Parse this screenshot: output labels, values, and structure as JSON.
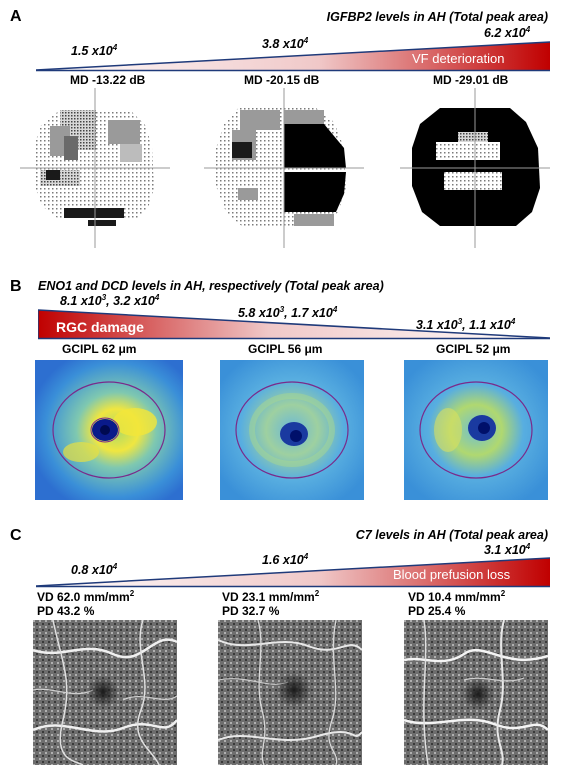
{
  "panelA": {
    "letter": "A",
    "title": "IGFBP2 levels in AH (Total peak area)",
    "levels": [
      {
        "mantissa": "1.5",
        "base": "x10",
        "exp": "4"
      },
      {
        "mantissa": "3.8",
        "base": "x10",
        "exp": "4"
      },
      {
        "mantissa": "6.2",
        "base": "x10",
        "exp": "4"
      }
    ],
    "banner": "VF deterioration",
    "md": [
      "MD -13.22 dB",
      "MD -20.15 dB",
      "MD -29.01 dB"
    ]
  },
  "panelB": {
    "letter": "B",
    "title": "ENO1 and DCD levels in AH, respectively (Total peak area)",
    "levels": [
      {
        "a": "8.1 x10",
        "aexp": "3",
        "b": ", 3.2 x10",
        "bexp": "4"
      },
      {
        "a": "5.8 x10",
        "aexp": "3",
        "b": ", 1.7 x10",
        "bexp": "4"
      },
      {
        "a": "3.1 x10",
        "aexp": "3",
        "b": ", 1.1 x10",
        "bexp": "4"
      }
    ],
    "banner": "RGC damage",
    "gcipl": [
      "GCIPL 62 μm",
      "GCIPL 56 μm",
      "GCIPL 52 μm"
    ]
  },
  "panelC": {
    "letter": "C",
    "title": "C7 levels in AH (Total peak area)",
    "levels": [
      {
        "mantissa": "0.8",
        "base": "x10",
        "exp": "4"
      },
      {
        "mantissa": "1.6",
        "base": "x10",
        "exp": "4"
      },
      {
        "mantissa": "3.1",
        "base": "x10",
        "exp": "4"
      }
    ],
    "banner": "Blood prefusion loss",
    "vd": [
      "VD 62.0 mm/mm",
      "VD 23.1 mm/mm",
      "VD 10.4 mm/mm"
    ],
    "vd_exp": "2",
    "pd": [
      "PD 43.2 %",
      "PD 32.7 %",
      "PD 25.4 %"
    ]
  },
  "colors": {
    "gradient_start": "#1f3a7a",
    "gradient_end": "#c00000",
    "oct_bg": "#3a8fd8",
    "oct_ring": "#7a2a8a"
  }
}
